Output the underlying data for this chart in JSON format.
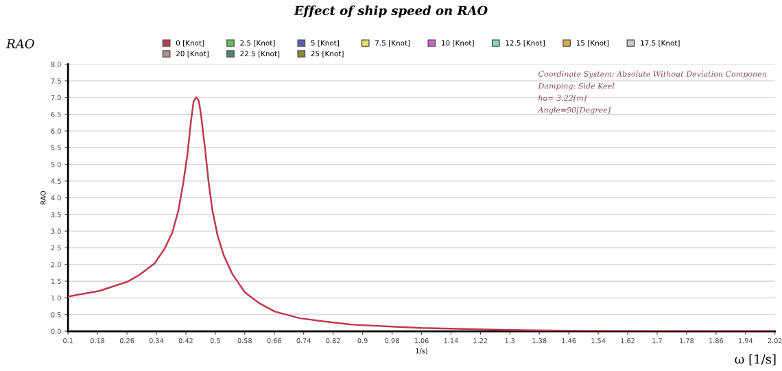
{
  "chart_data": {
    "type": "line",
    "title": "Effect of ship speed on RAO",
    "xlabel": "1/s)",
    "ylabel": "RAO",
    "annotations": [
      "Coordinate System: Absolute Without Deviation Componen",
      "Damping: Side Keel",
      "ho= 3.22[m]",
      "Angle=90[Degree]",
      "RAO",
      "ω [1/s]"
    ],
    "x": [
      0.1,
      0.185,
      0.26,
      0.294,
      0.335,
      0.362,
      0.383,
      0.4,
      0.413,
      0.424,
      0.434,
      0.441,
      0.448,
      0.455,
      0.461,
      0.472,
      0.482,
      0.492,
      0.506,
      0.523,
      0.546,
      0.58,
      0.621,
      0.662,
      0.73,
      0.8,
      0.87,
      0.98,
      1.06,
      1.14,
      1.22,
      1.3,
      1.46,
      1.7,
      2.02
    ],
    "series": [
      {
        "name": "0 [Knot]",
        "color": "#c0394b",
        "values": [
          1.04,
          1.21,
          1.48,
          1.69,
          2.03,
          2.47,
          2.95,
          3.63,
          4.45,
          5.27,
          6.3,
          6.88,
          7.01,
          6.91,
          6.5,
          5.48,
          4.45,
          3.63,
          2.88,
          2.27,
          1.72,
          1.17,
          0.83,
          0.59,
          0.39,
          0.29,
          0.2,
          0.14,
          0.1,
          0.08,
          0.06,
          0.04,
          0.02,
          0.01,
          0.01
        ]
      },
      {
        "name": "2.5 [Knot]",
        "color": "#5cc45c",
        "values": [
          null,
          null,
          null,
          null,
          null,
          null,
          null,
          null,
          null,
          null,
          null,
          null,
          null,
          null,
          null,
          null,
          null,
          null,
          null,
          null,
          null,
          null,
          null,
          null,
          null,
          null,
          null,
          null,
          null,
          null,
          null,
          null,
          null,
          null,
          null
        ]
      },
      {
        "name": "5 [Knot]",
        "color": "#5b5bbf",
        "values": [
          null,
          null,
          null,
          null,
          null,
          null,
          null,
          null,
          null,
          null,
          null,
          null,
          null,
          null,
          null,
          null,
          null,
          null,
          null,
          null,
          null,
          null,
          null,
          null,
          null,
          null,
          null,
          null,
          null,
          null,
          null,
          null,
          null,
          null,
          null
        ]
      },
      {
        "name": "7.5 [Knot]",
        "color": "#e6e65a",
        "values": [
          null,
          null,
          null,
          null,
          null,
          null,
          null,
          null,
          null,
          null,
          null,
          null,
          null,
          null,
          null,
          null,
          null,
          null,
          null,
          null,
          null,
          null,
          null,
          null,
          null,
          null,
          null,
          null,
          null,
          null,
          null,
          null,
          null,
          null,
          null
        ]
      },
      {
        "name": "10 [Knot]",
        "color": "#d060d0",
        "values": [
          null,
          null,
          null,
          null,
          null,
          null,
          null,
          null,
          null,
          null,
          null,
          null,
          null,
          null,
          null,
          null,
          null,
          null,
          null,
          null,
          null,
          null,
          null,
          null,
          null,
          null,
          null,
          null,
          null,
          null,
          null,
          null,
          null,
          null,
          null
        ]
      },
      {
        "name": "12.5 [Knot]",
        "color": "#80d6c8",
        "values": [
          null,
          null,
          null,
          null,
          null,
          null,
          null,
          null,
          null,
          null,
          null,
          null,
          null,
          null,
          null,
          null,
          null,
          null,
          null,
          null,
          null,
          null,
          null,
          null,
          null,
          null,
          null,
          null,
          null,
          null,
          null,
          null,
          null,
          null,
          null
        ]
      },
      {
        "name": "15 [Knot]",
        "color": "#d4b040",
        "values": [
          null,
          null,
          null,
          null,
          null,
          null,
          null,
          null,
          null,
          null,
          null,
          null,
          null,
          null,
          null,
          null,
          null,
          null,
          null,
          null,
          null,
          null,
          null,
          null,
          null,
          null,
          null,
          null,
          null,
          null,
          null,
          null,
          null,
          null,
          null
        ]
      },
      {
        "name": "17.5 [Knot]",
        "color": "#c8c8c8",
        "values": [
          null,
          null,
          null,
          null,
          null,
          null,
          null,
          null,
          null,
          null,
          null,
          null,
          null,
          null,
          null,
          null,
          null,
          null,
          null,
          null,
          null,
          null,
          null,
          null,
          null,
          null,
          null,
          null,
          null,
          null,
          null,
          null,
          null,
          null,
          null
        ]
      },
      {
        "name": "20 [Knot]",
        "color": "#b09090",
        "values": [
          null,
          null,
          null,
          null,
          null,
          null,
          null,
          null,
          null,
          null,
          null,
          null,
          null,
          null,
          null,
          null,
          null,
          null,
          null,
          null,
          null,
          null,
          null,
          null,
          null,
          null,
          null,
          null,
          null,
          null,
          null,
          null,
          null,
          null,
          null
        ]
      },
      {
        "name": "22.5 [Knot]",
        "color": "#4a8a6a",
        "values": [
          null,
          null,
          null,
          null,
          null,
          null,
          null,
          null,
          null,
          null,
          null,
          null,
          null,
          null,
          null,
          null,
          null,
          null,
          null,
          null,
          null,
          null,
          null,
          null,
          null,
          null,
          null,
          null,
          null,
          null,
          null,
          null,
          null,
          null,
          null
        ]
      },
      {
        "name": "25 [Knot]",
        "color": "#8a8a3a",
        "values": [
          null,
          null,
          null,
          null,
          null,
          null,
          null,
          null,
          null,
          null,
          null,
          null,
          null,
          null,
          null,
          null,
          null,
          null,
          null,
          null,
          null,
          null,
          null,
          null,
          null,
          null,
          null,
          null,
          null,
          null,
          null,
          null,
          null,
          null,
          null
        ]
      }
    ],
    "xlim": [
      0.1,
      2.02
    ],
    "xticks": [
      0.1,
      0.18,
      0.26,
      0.34,
      0.42,
      0.5,
      0.58,
      0.66,
      0.74,
      0.82,
      0.9,
      0.98,
      1.06,
      1.14,
      1.22,
      1.3,
      1.38,
      1.46,
      1.54,
      1.62,
      1.7,
      1.78,
      1.86,
      1.94,
      2.02
    ],
    "ylim": [
      0,
      8
    ],
    "yticks": [
      {
        "value": 0,
        "label": "0.0"
      },
      0.5,
      {
        "value": 1,
        "label": "1.0"
      },
      1.5,
      {
        "value": 2,
        "label": "2.0"
      },
      2.5,
      {
        "value": 3,
        "label": "3.0"
      },
      3.5,
      {
        "value": 4,
        "label": "4.0"
      },
      4.5,
      {
        "value": 5,
        "label": "5.0"
      },
      5.5,
      {
        "value": 6,
        "label": "6.0"
      },
      6.5,
      {
        "value": 7,
        "label": "7.0"
      },
      7.5,
      {
        "value": 8,
        "label": "8.0"
      }
    ],
    "grid": "y",
    "legend": "top",
    "marker": "none",
    "line_style": "solid"
  }
}
